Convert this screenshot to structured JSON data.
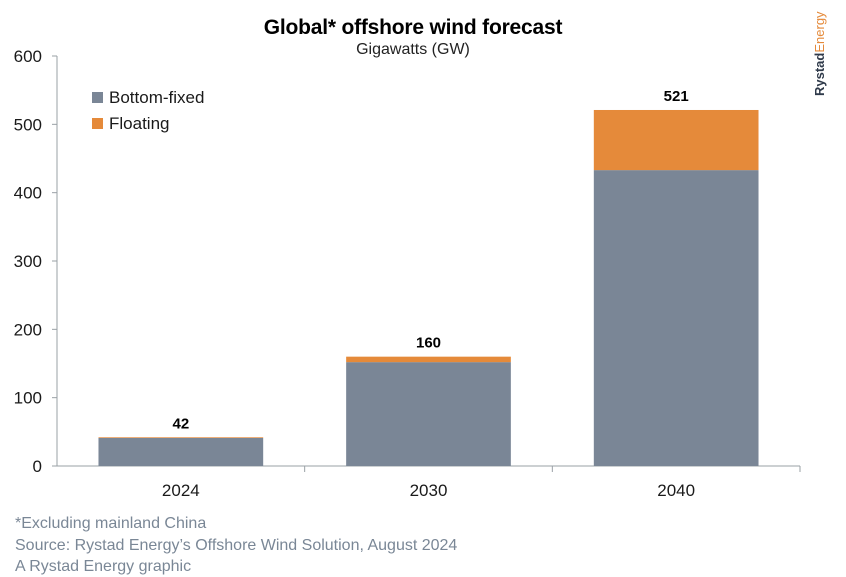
{
  "chart_data": {
    "type": "bar",
    "stacked": true,
    "title": "Global* offshore wind forecast",
    "subtitle": "Gigawatts (GW)",
    "categories": [
      "2024",
      "2030",
      "2040"
    ],
    "series": [
      {
        "name": "Bottom-fixed",
        "color": "#7a8696",
        "values": [
          41,
          152,
          433
        ]
      },
      {
        "name": "Floating",
        "color": "#e58a3a",
        "values": [
          1,
          8,
          88
        ]
      }
    ],
    "totals": [
      "42",
      "160",
      "521"
    ],
    "ylim": [
      0,
      600
    ],
    "yticks": [
      "0",
      "100",
      "200",
      "300",
      "400",
      "500",
      "600"
    ],
    "grid": false,
    "legend_position": "top-left"
  },
  "brand": {
    "part1": "Rystad",
    "part2": "Energy"
  },
  "footnotes": {
    "note": "*Excluding mainland China",
    "source": "Source: Rystad Energy’s Offshore Wind Solution, August 2024",
    "credit": "A Rystad Energy graphic"
  }
}
